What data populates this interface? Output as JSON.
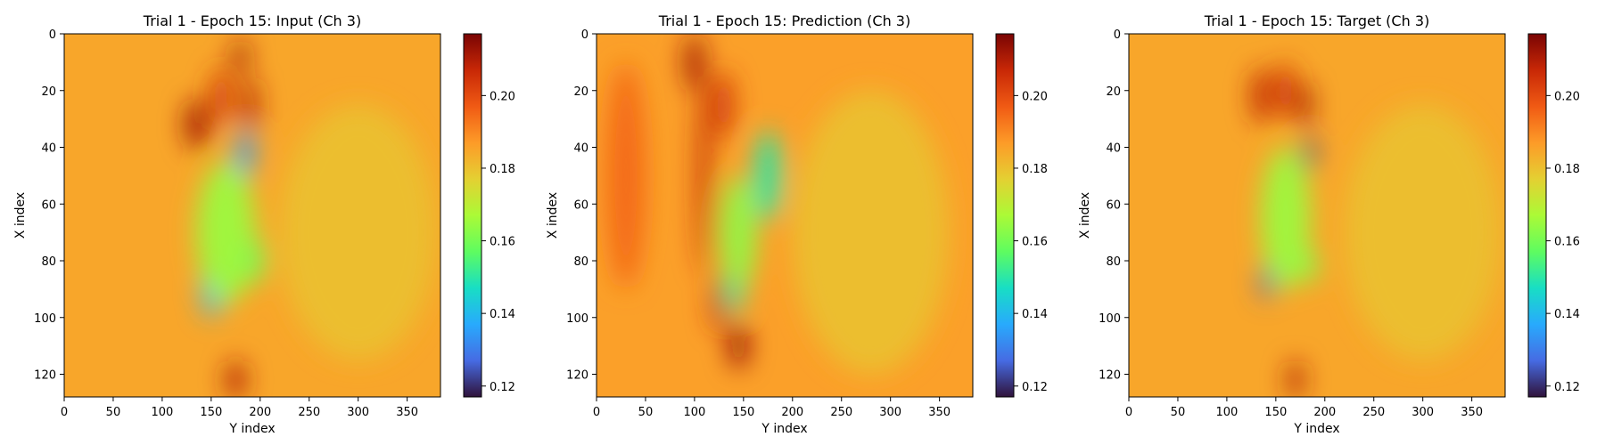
{
  "chart_data": [
    {
      "type": "heatmap",
      "title": "Trial 1 - Epoch 15: Input (Ch 3)",
      "xlabel": "Y index",
      "ylabel": "X index",
      "xlim": [
        0,
        384
      ],
      "ylim": [
        128,
        0
      ],
      "xticks": [
        0,
        50,
        100,
        150,
        200,
        250,
        300,
        350
      ],
      "yticks": [
        0,
        20,
        40,
        60,
        80,
        100,
        120
      ],
      "colorbar": {
        "range": [
          0.117,
          0.217
        ],
        "ticks": [
          "0.12",
          "0.14",
          "0.16",
          "0.18",
          "0.20"
        ],
        "cmap": "turbo"
      },
      "background_value": 0.185,
      "features": [
        {
          "x": 135,
          "y": 32,
          "value": 0.212,
          "sx": 12,
          "sy": 9
        },
        {
          "x": 160,
          "y": 22,
          "value": 0.205,
          "sx": 10,
          "sy": 10
        },
        {
          "x": 190,
          "y": 25,
          "value": 0.21,
          "sx": 8,
          "sy": 10
        },
        {
          "x": 180,
          "y": 8,
          "value": 0.212,
          "sx": 8,
          "sy": 6
        },
        {
          "x": 185,
          "y": 42,
          "value": 0.135,
          "sx": 9,
          "sy": 8
        },
        {
          "x": 150,
          "y": 90,
          "value": 0.14,
          "sx": 10,
          "sy": 10
        },
        {
          "x": 165,
          "y": 70,
          "value": 0.165,
          "sx": 30,
          "sy": 25
        },
        {
          "x": 195,
          "y": 80,
          "value": 0.16,
          "sx": 10,
          "sy": 8
        },
        {
          "x": 175,
          "y": 122,
          "value": 0.21,
          "sx": 10,
          "sy": 7
        },
        {
          "x": 300,
          "y": 70,
          "value": 0.18,
          "sx": 80,
          "sy": 45
        }
      ]
    },
    {
      "type": "heatmap",
      "title": "Trial 1 - Epoch 15: Prediction (Ch 3)",
      "xlabel": "Y index",
      "ylabel": "X index",
      "xlim": [
        0,
        384
      ],
      "ylim": [
        128,
        0
      ],
      "xticks": [
        0,
        50,
        100,
        150,
        200,
        250,
        300,
        350
      ],
      "yticks": [
        0,
        20,
        40,
        60,
        80,
        100,
        120
      ],
      "colorbar": {
        "range": [
          0.117,
          0.217
        ],
        "ticks": [
          "0.12",
          "0.14",
          "0.16",
          "0.18",
          "0.20"
        ],
        "cmap": "turbo"
      },
      "background_value": 0.186,
      "features": [
        {
          "x": 100,
          "y": 10,
          "value": 0.212,
          "sx": 10,
          "sy": 10
        },
        {
          "x": 110,
          "y": 50,
          "value": 0.208,
          "sx": 7,
          "sy": 35
        },
        {
          "x": 130,
          "y": 25,
          "value": 0.205,
          "sx": 10,
          "sy": 12
        },
        {
          "x": 145,
          "y": 110,
          "value": 0.214,
          "sx": 10,
          "sy": 8
        },
        {
          "x": 125,
          "y": 95,
          "value": 0.208,
          "sx": 8,
          "sy": 10
        },
        {
          "x": 175,
          "y": 50,
          "value": 0.15,
          "sx": 14,
          "sy": 16
        },
        {
          "x": 140,
          "y": 90,
          "value": 0.15,
          "sx": 10,
          "sy": 8
        },
        {
          "x": 145,
          "y": 70,
          "value": 0.163,
          "sx": 18,
          "sy": 20
        },
        {
          "x": 280,
          "y": 70,
          "value": 0.18,
          "sx": 80,
          "sy": 50
        },
        {
          "x": 30,
          "y": 50,
          "value": 0.195,
          "sx": 20,
          "sy": 40
        }
      ]
    },
    {
      "type": "heatmap",
      "title": "Trial 1 - Epoch 15: Target (Ch 3)",
      "xlabel": "Y index",
      "ylabel": "X index",
      "xlim": [
        0,
        384
      ],
      "ylim": [
        128,
        0
      ],
      "xticks": [
        0,
        50,
        100,
        150,
        200,
        250,
        300,
        350
      ],
      "yticks": [
        0,
        20,
        40,
        60,
        80,
        100,
        120
      ],
      "colorbar": {
        "range": [
          0.117,
          0.217
        ],
        "ticks": [
          "0.12",
          "0.14",
          "0.16",
          "0.18",
          "0.20"
        ],
        "cmap": "turbo"
      },
      "background_value": 0.185,
      "features": [
        {
          "x": 135,
          "y": 22,
          "value": 0.208,
          "sx": 10,
          "sy": 10
        },
        {
          "x": 160,
          "y": 20,
          "value": 0.205,
          "sx": 10,
          "sy": 10
        },
        {
          "x": 180,
          "y": 25,
          "value": 0.212,
          "sx": 7,
          "sy": 8
        },
        {
          "x": 185,
          "y": 42,
          "value": 0.122,
          "sx": 6,
          "sy": 6
        },
        {
          "x": 140,
          "y": 88,
          "value": 0.125,
          "sx": 6,
          "sy": 6
        },
        {
          "x": 160,
          "y": 65,
          "value": 0.165,
          "sx": 25,
          "sy": 25
        },
        {
          "x": 185,
          "y": 82,
          "value": 0.162,
          "sx": 8,
          "sy": 6
        },
        {
          "x": 170,
          "y": 122,
          "value": 0.21,
          "sx": 8,
          "sy": 7
        },
        {
          "x": 300,
          "y": 70,
          "value": 0.18,
          "sx": 80,
          "sy": 45
        }
      ]
    }
  ]
}
